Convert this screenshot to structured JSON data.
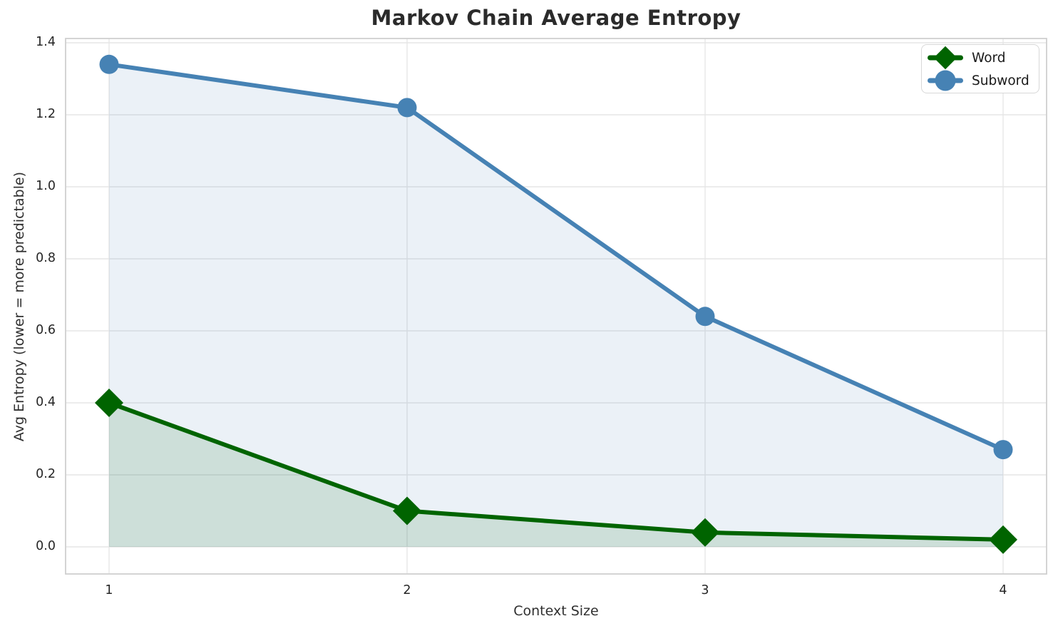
{
  "title": "Markov Chain Average Entropy",
  "chart_data": {
    "type": "line",
    "title": "Markov Chain Average Entropy",
    "xlabel": "Context Size",
    "ylabel": "Avg Entropy (lower = more predictable)",
    "x": [
      1,
      2,
      3,
      4
    ],
    "series": [
      {
        "name": "Word",
        "values": [
          0.4,
          0.1,
          0.04,
          0.02
        ],
        "color": "#006400",
        "marker": "diamond",
        "fill_alpha": 0.13
      },
      {
        "name": "Subword",
        "values": [
          1.34,
          1.22,
          0.64,
          0.27
        ],
        "color": "#4682b4",
        "marker": "circle",
        "fill_alpha": 0.11
      }
    ],
    "x_ticks": [
      "1",
      "2",
      "3",
      "4"
    ],
    "x_tick_values": [
      1,
      2,
      3,
      4
    ],
    "y_ticks": [
      "0.0",
      "0.2",
      "0.4",
      "0.6",
      "0.8",
      "1.0",
      "1.2",
      "1.4"
    ],
    "y_tick_values": [
      0.0,
      0.2,
      0.4,
      0.6,
      0.8,
      1.0,
      1.2,
      1.4
    ],
    "xlim": [
      0.854,
      4.146
    ],
    "ylim": [
      -0.075,
      1.412
    ],
    "grid": true,
    "area_fill_to_zero": true,
    "legend_position": "upper right",
    "colors": {
      "grid": "#e6e6e6",
      "spine": "#cfcfcf",
      "tick_text": "#262626",
      "title_text": "#2b2b2b",
      "background": "#ffffff"
    }
  },
  "legend": {
    "items": [
      {
        "label": "Word"
      },
      {
        "label": "Subword"
      }
    ]
  }
}
